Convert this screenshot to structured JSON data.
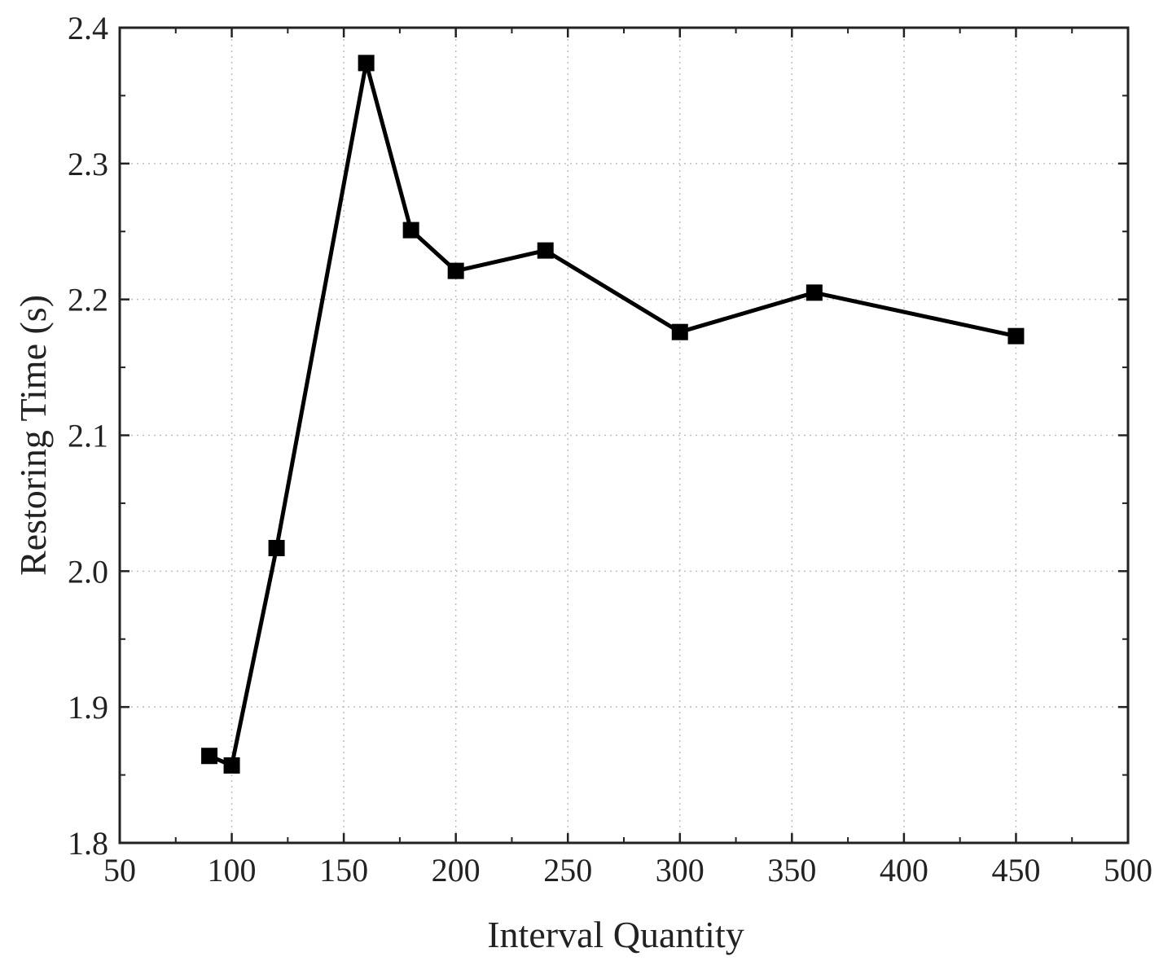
{
  "chart_data": {
    "type": "line",
    "title": "",
    "xlabel": "Interval Quantity",
    "ylabel": "Restoring Time (s)",
    "xlim": [
      50,
      500
    ],
    "ylim": [
      1.8,
      2.4
    ],
    "x_ticks": [
      "50",
      "100",
      "150",
      "200",
      "250",
      "300",
      "350",
      "400",
      "450",
      "500"
    ],
    "y_ticks": [
      "1.8",
      "1.9",
      "2.0",
      "2.1",
      "2.2",
      "2.3",
      "2.4"
    ],
    "grid": true,
    "grid_style": "dotted",
    "marker": "square",
    "line_color": "#000000",
    "series": [
      {
        "x": [
          90,
          100,
          120,
          160,
          180,
          200,
          240,
          300,
          360,
          450
        ],
        "y": [
          1.864,
          1.857,
          2.017,
          2.374,
          2.251,
          2.221,
          2.236,
          2.176,
          2.205,
          2.173
        ]
      }
    ]
  }
}
